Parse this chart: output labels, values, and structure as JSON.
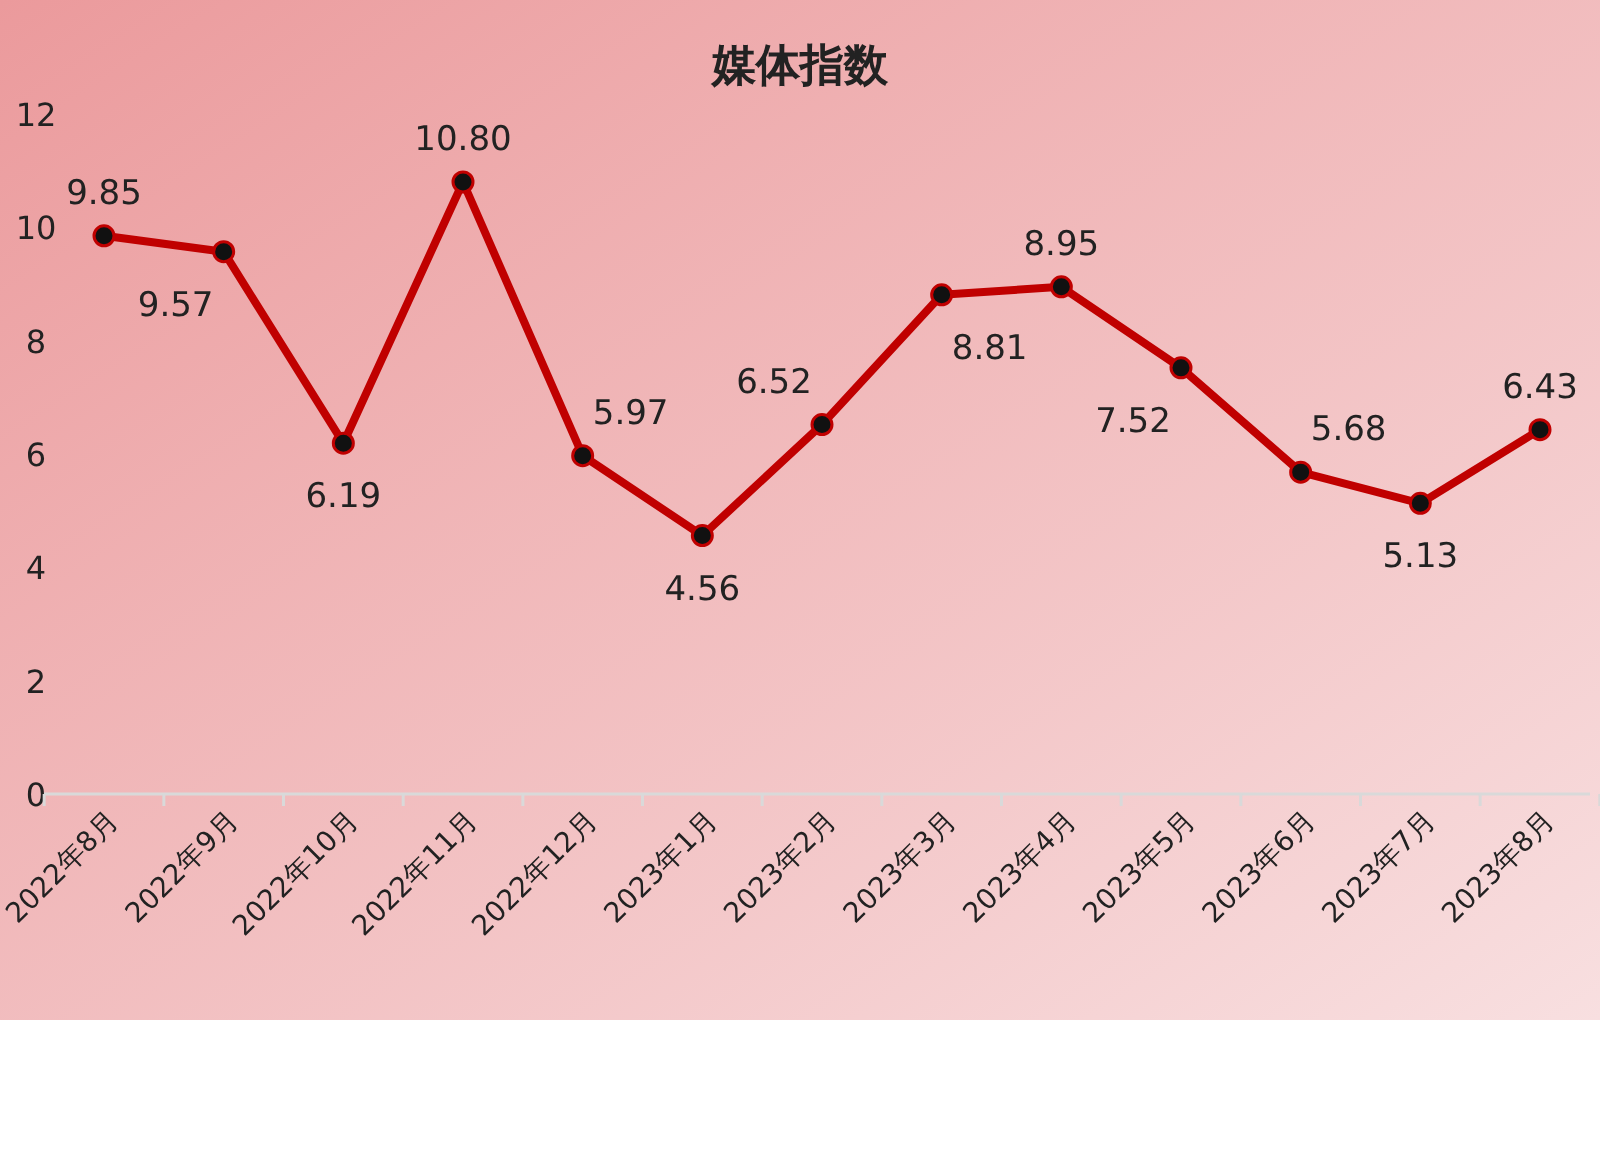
{
  "chart_data": {
    "type": "line",
    "title": "媒体指数",
    "categories": [
      "2022年8月",
      "2022年9月",
      "2022年10月",
      "2022年11月",
      "2022年12月",
      "2023年1月",
      "2023年2月",
      "2023年3月",
      "2023年4月",
      "2023年5月",
      "2023年6月",
      "2023年7月",
      "2023年8月"
    ],
    "series": [
      {
        "color": "#c00000",
        "values": [
          9.85,
          9.57,
          6.19,
          10.8,
          5.97,
          4.56,
          6.52,
          8.81,
          8.95,
          7.52,
          5.68,
          5.13,
          6.43
        ],
        "value_labels": [
          "9.85",
          "9.57",
          "6.19",
          "10.80",
          "5.97",
          "4.56",
          "6.52",
          "8.81",
          "8.95",
          "7.52",
          "5.68",
          "5.13",
          "6.43"
        ]
      }
    ],
    "ylim": [
      0,
      12
    ],
    "yticks": [
      0,
      2,
      4,
      6,
      8,
      10,
      12
    ],
    "marker": "circle",
    "line_style": "solid",
    "grid": false
  }
}
